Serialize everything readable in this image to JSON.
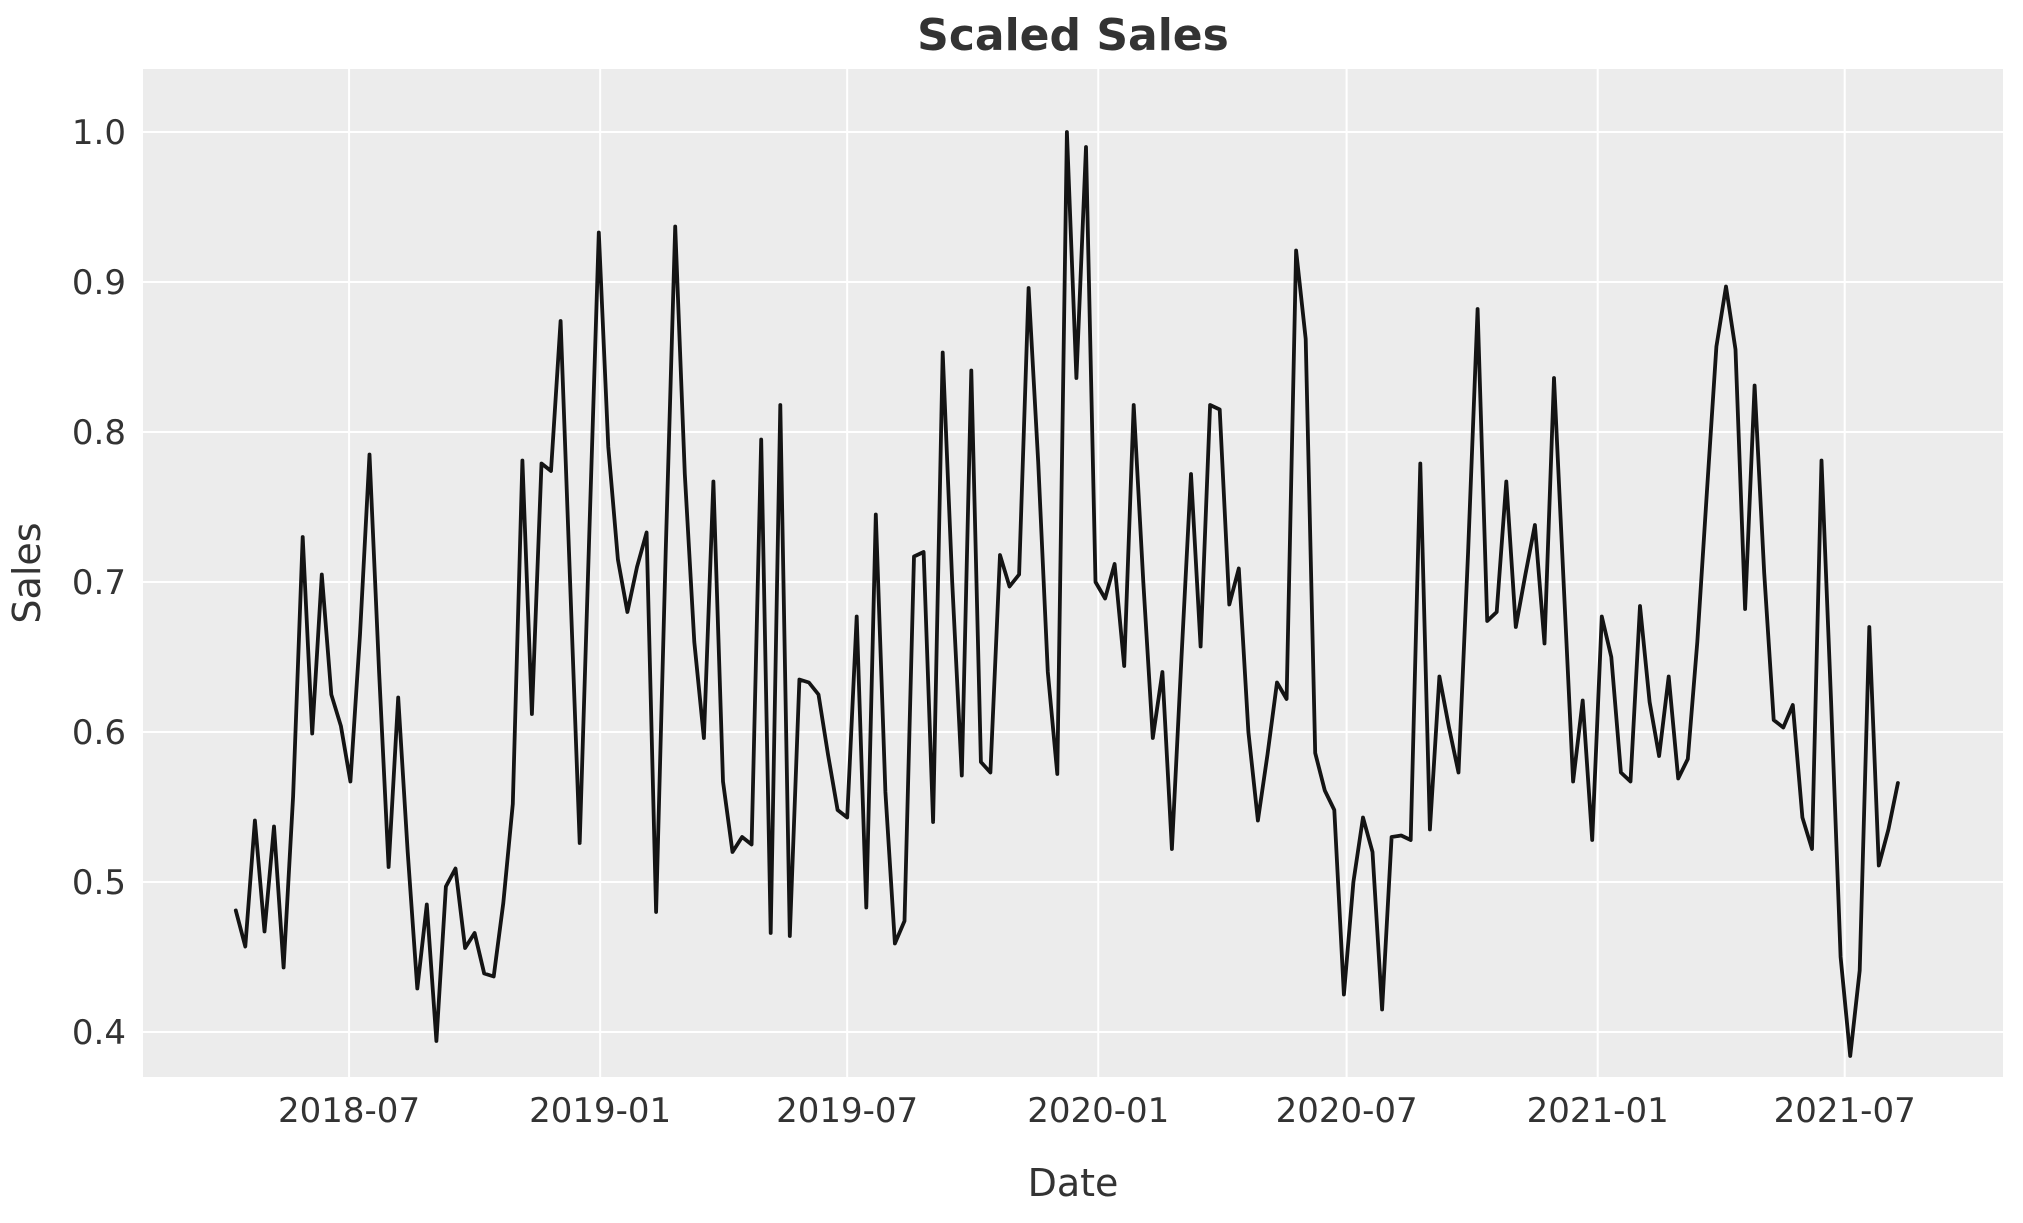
{
  "chart_data": {
    "type": "line",
    "title": "Scaled Sales",
    "xlabel": "Date",
    "ylabel": "Sales",
    "series": [
      {
        "name": "Sales",
        "x_start_date": "2018-04-09",
        "x_step_days": 7,
        "values": [
          0.481,
          0.457,
          0.541,
          0.467,
          0.537,
          0.443,
          0.557,
          0.73,
          0.599,
          0.705,
          0.625,
          0.604,
          0.567,
          0.665,
          0.785,
          0.64,
          0.51,
          0.623,
          0.52,
          0.429,
          0.485,
          0.394,
          0.497,
          0.509,
          0.456,
          0.466,
          0.439,
          0.437,
          0.486,
          0.552,
          0.781,
          0.612,
          0.779,
          0.774,
          0.874,
          0.7,
          0.526,
          0.73,
          0.933,
          0.79,
          0.715,
          0.68,
          0.71,
          0.733,
          0.48,
          0.72,
          0.937,
          0.772,
          0.66,
          0.596,
          0.767,
          0.567,
          0.52,
          0.53,
          0.525,
          0.795,
          0.466,
          0.818,
          0.464,
          0.635,
          0.633,
          0.625,
          0.585,
          0.548,
          0.543,
          0.677,
          0.483,
          0.745,
          0.56,
          0.459,
          0.474,
          0.717,
          0.72,
          0.54,
          0.853,
          0.7,
          0.571,
          0.841,
          0.58,
          0.573,
          0.718,
          0.697,
          0.705,
          0.896,
          0.78,
          0.64,
          0.572,
          1.0,
          0.836,
          0.99,
          0.7,
          0.689,
          0.712,
          0.644,
          0.818,
          0.7,
          0.596,
          0.64,
          0.522,
          0.65,
          0.772,
          0.657,
          0.818,
          0.815,
          0.685,
          0.709,
          0.6,
          0.541,
          0.585,
          0.633,
          0.622,
          0.921,
          0.862,
          0.586,
          0.561,
          0.548,
          0.425,
          0.5,
          0.543,
          0.52,
          0.415,
          0.53,
          0.531,
          0.528,
          0.779,
          0.535,
          0.637,
          0.603,
          0.573,
          0.72,
          0.882,
          0.674,
          0.68,
          0.767,
          0.67,
          0.705,
          0.738,
          0.659,
          0.836,
          0.7,
          0.567,
          0.621,
          0.528,
          0.677,
          0.65,
          0.573,
          0.567,
          0.684,
          0.62,
          0.584,
          0.637,
          0.569,
          0.582,
          0.66,
          0.76,
          0.857,
          0.897,
          0.855,
          0.682,
          0.831,
          0.706,
          0.608,
          0.603,
          0.618,
          0.543,
          0.522,
          0.781,
          0.62,
          0.45,
          0.384,
          0.441,
          0.67,
          0.511,
          0.535,
          0.566
        ]
      }
    ],
    "x_tick_labels": [
      "2018-07",
      "2019-01",
      "2019-07",
      "2020-01",
      "2020-07",
      "2021-01",
      "2021-07"
    ],
    "x_tick_dates": [
      "2018-07-01",
      "2019-01-01",
      "2019-07-01",
      "2020-01-01",
      "2020-07-01",
      "2021-01-01",
      "2021-07-01"
    ],
    "y_ticks": [
      0.4,
      0.5,
      0.6,
      0.7,
      0.8,
      0.9,
      1.0
    ],
    "y_tick_labels": [
      "0.4",
      "0.5",
      "0.6",
      "0.7",
      "0.8",
      "0.9",
      "1.0"
    ],
    "xlim": [
      "2018-01-31",
      "2021-10-25"
    ],
    "ylim": [
      0.37,
      1.042
    ],
    "grid": true,
    "legend": "none",
    "colors": {
      "line": "#141414",
      "plot_background": "#ececec",
      "grid": "#ffffff",
      "text": "#333333",
      "figure_background": "#ffffff"
    }
  }
}
